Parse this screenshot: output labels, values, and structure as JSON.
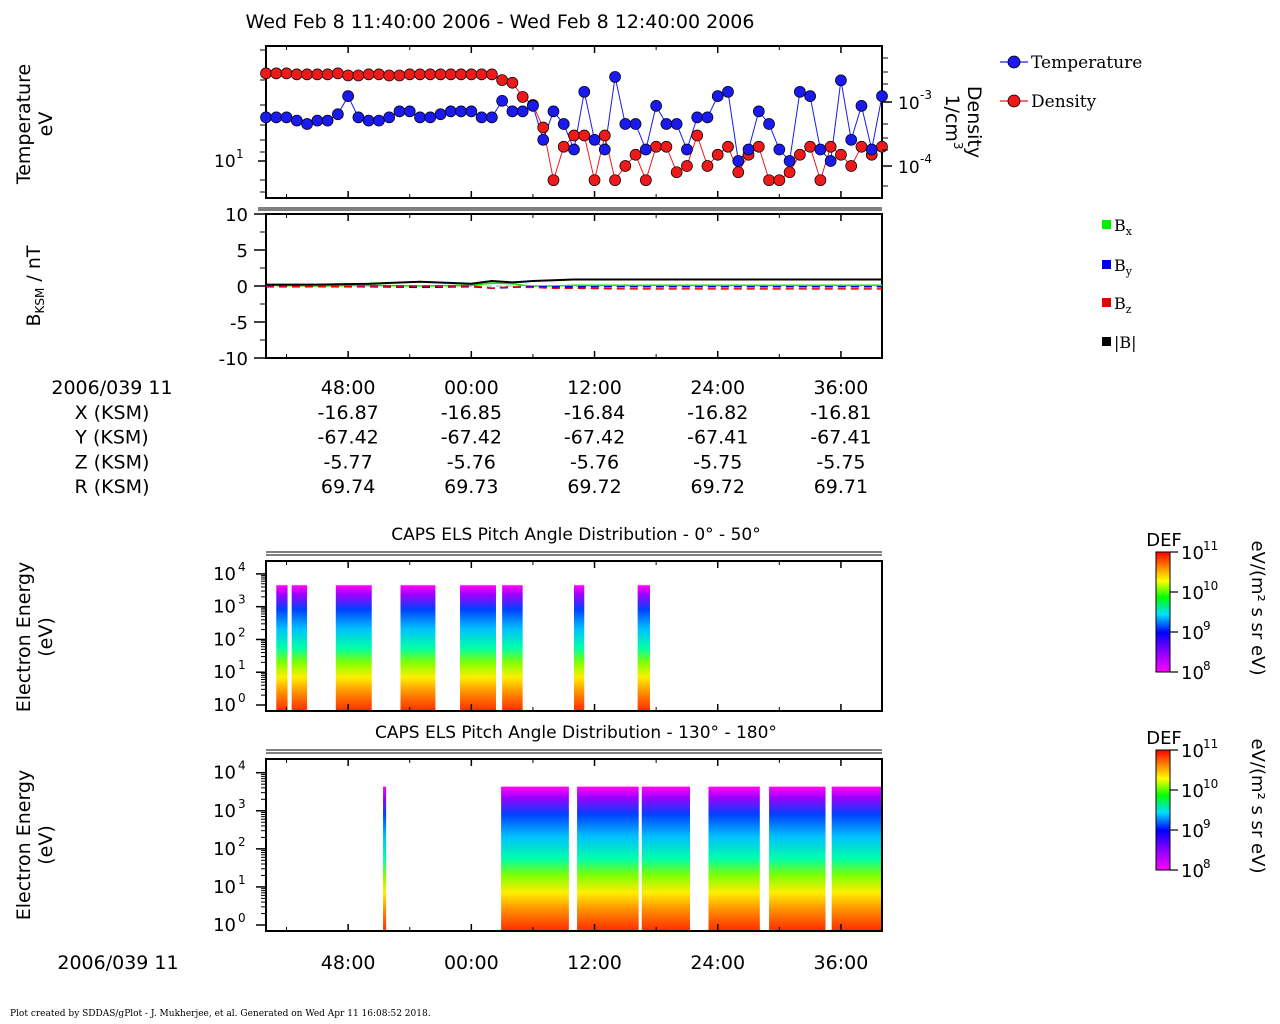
{
  "header": {
    "title": "Wed Feb 8 11:40:00 2006 - Wed Feb 8 12:40:00 2006",
    "footer": "Plot created by SDDAS/gPlot - J. Mukherjee, et al.  Generated on Wed Apr 11 16:08:52 2018."
  },
  "colors": {
    "temperature": "#1a1aee",
    "density": "#ee1a1a",
    "bx": "#00ee00",
    "by": "#0000ee",
    "bz": "#ee0000",
    "btot": "#000000"
  },
  "chart_data": [
    {
      "type": "line",
      "panel": "plasma_moments",
      "ylabel": "Temperature",
      "ylabel_unit": "eV",
      "y2label": "Density",
      "y2label_unit": "1/cm3",
      "y_scale": "log",
      "y_tick_labels": [
        "10^1"
      ],
      "y2_tick_labels": [
        "10^-3",
        "10^-4"
      ],
      "legend": [
        "Temperature",
        "Density"
      ],
      "legend_position": "right",
      "x_minutes": [
        0,
        1,
        2,
        3,
        4,
        5,
        6,
        7,
        8,
        9,
        10,
        11,
        12,
        13,
        14,
        15,
        16,
        17,
        18,
        19,
        20,
        21,
        22,
        23,
        24,
        25,
        26,
        27,
        28,
        29,
        30,
        31,
        32,
        33,
        34,
        35,
        36,
        37,
        38,
        39,
        40,
        41,
        42,
        43,
        44,
        45,
        46,
        47,
        48,
        49,
        50,
        51,
        52,
        53,
        54,
        55,
        56,
        57,
        58,
        59,
        60
      ],
      "series": [
        {
          "name": "Temperature",
          "values": [
            20,
            20,
            20,
            19,
            18,
            19,
            19,
            21,
            28,
            20,
            19,
            19,
            20,
            22,
            22,
            20,
            20,
            21,
            22,
            22,
            22,
            20,
            20,
            26,
            22,
            22,
            24,
            14,
            22,
            18,
            12,
            30,
            14,
            12,
            38,
            18,
            18,
            12,
            24,
            18,
            18,
            12,
            20,
            20,
            28,
            30,
            10,
            12,
            22,
            18,
            12,
            10,
            30,
            28,
            12,
            10,
            36,
            14,
            24,
            12,
            28
          ]
        },
        {
          "name": "Density",
          "values": [
            0.0028,
            0.0028,
            0.0028,
            0.0027,
            0.0027,
            0.0027,
            0.0027,
            0.0028,
            0.0026,
            0.0026,
            0.0027,
            0.0027,
            0.0026,
            0.0026,
            0.0027,
            0.0027,
            0.0027,
            0.0027,
            0.0027,
            0.0027,
            0.0027,
            0.0027,
            0.0027,
            0.0022,
            0.002,
            0.0012,
            0.0009,
            0.0004,
            6e-05,
            0.0002,
            0.0003,
            0.0003,
            6e-05,
            0.0003,
            6e-05,
            0.0001,
            0.00015,
            6e-05,
            0.0002,
            0.0002,
            8e-05,
            0.0001,
            0.0003,
            0.0001,
            0.00015,
            0.0002,
            8e-05,
            0.00015,
            0.0002,
            6e-05,
            6e-05,
            8e-05,
            0.00015,
            0.0002,
            6e-05,
            0.0002,
            0.00015,
            0.0001,
            0.0002,
            0.00015,
            0.0002
          ]
        }
      ]
    },
    {
      "type": "line",
      "panel": "magnetic_field",
      "ylabel": "B_KSM / nT",
      "ylim": [
        -10,
        10
      ],
      "y_ticks": [
        "10",
        "5",
        "0",
        "-5",
        "-10"
      ],
      "legend": [
        "Bx",
        "By",
        "Bz",
        "|B|"
      ],
      "legend_position": "right",
      "x_minutes": [
        0,
        5,
        10,
        15,
        20,
        22,
        24,
        25,
        26,
        28,
        30,
        35,
        40,
        45,
        50,
        55,
        60
      ],
      "series": [
        {
          "name": "Bx",
          "values": [
            0.1,
            0.0,
            0.1,
            0.0,
            0.1,
            0.4,
            0.3,
            0.1,
            0.0,
            0.0,
            0.1,
            0.1,
            0.1,
            0.1,
            0.1,
            0.1,
            0.1
          ]
        },
        {
          "name": "By",
          "values": [
            -0.1,
            -0.1,
            -0.1,
            -0.2,
            -0.1,
            -0.3,
            -0.2,
            -0.1,
            -0.1,
            -0.1,
            -0.1,
            -0.1,
            -0.1,
            -0.1,
            -0.1,
            -0.1,
            -0.1
          ]
        },
        {
          "name": "Bz",
          "values": [
            0.0,
            -0.1,
            0.0,
            0.0,
            0.0,
            -0.3,
            -0.1,
            -0.2,
            -0.2,
            -0.3,
            -0.3,
            -0.4,
            -0.4,
            -0.4,
            -0.4,
            -0.4,
            -0.4
          ]
        },
        {
          "name": "|B|",
          "values": [
            0.2,
            0.2,
            0.3,
            0.6,
            0.3,
            0.7,
            0.5,
            0.6,
            0.7,
            0.8,
            0.9,
            0.9,
            0.9,
            0.9,
            0.9,
            0.9,
            0.9
          ]
        }
      ]
    },
    {
      "type": "table",
      "panel": "ephemeris",
      "corner_label": "2006/039 11",
      "columns": [
        "48:00",
        "00:00",
        "12:00",
        "24:00",
        "36:00"
      ],
      "rows": [
        {
          "label": "X (KSM)",
          "values": [
            "-16.87",
            "-16.85",
            "-16.84",
            "-16.82",
            "-16.81"
          ]
        },
        {
          "label": "Y (KSM)",
          "values": [
            "-67.42",
            "-67.42",
            "-67.42",
            "-67.41",
            "-67.41"
          ]
        },
        {
          "label": "Z (KSM)",
          "values": [
            "-5.77",
            "-5.76",
            "-5.76",
            "-5.75",
            "-5.75"
          ]
        },
        {
          "label": "R (KSM)",
          "values": [
            "69.74",
            "69.73",
            "69.72",
            "69.72",
            "69.71"
          ]
        }
      ]
    },
    {
      "type": "heatmap",
      "panel": "pad_0_50",
      "title": "CAPS ELS Pitch Angle Distribution - 0° - 50°",
      "ylabel": "Electron Energy",
      "ylabel_unit": "(eV)",
      "y_scale": "log",
      "y_ticks": [
        "10^0",
        "10^1",
        "10^2",
        "10^3",
        "10^4"
      ],
      "colorbar": {
        "label": "DEF",
        "unit": "eV/(m2 s sr eV)",
        "ticks": [
          "10^11",
          "10^10",
          "10^9",
          "10^8"
        ]
      },
      "data_intervals_minutes": [
        [
          1.0,
          2.1
        ],
        [
          2.5,
          4.0
        ],
        [
          6.8,
          10.3
        ],
        [
          13.1,
          16.5
        ],
        [
          18.9,
          22.4
        ],
        [
          23.0,
          25.0
        ],
        [
          30.0,
          31.0
        ],
        [
          36.2,
          37.4
        ]
      ]
    },
    {
      "type": "heatmap",
      "panel": "pad_130_180",
      "title": "CAPS ELS Pitch Angle Distribution - 130° - 180°",
      "ylabel": "Electron Energy",
      "ylabel_unit": "(eV)",
      "y_scale": "log",
      "y_ticks": [
        "10^0",
        "10^1",
        "10^2",
        "10^3",
        "10^4"
      ],
      "colorbar": {
        "label": "DEF",
        "unit": "eV/(m2 s sr eV)",
        "ticks": [
          "10^11",
          "10^10",
          "10^9",
          "10^8"
        ]
      },
      "data_intervals_minutes": [
        [
          11.4,
          11.7
        ],
        [
          22.9,
          29.5
        ],
        [
          30.3,
          36.3
        ],
        [
          36.6,
          41.3
        ],
        [
          43.1,
          48.1
        ],
        [
          49.0,
          54.5
        ],
        [
          55.1,
          60.0
        ]
      ]
    }
  ],
  "time_axis": {
    "corner_label": "2006/039 11",
    "tick_labels": [
      "48:00",
      "00:00",
      "12:00",
      "24:00",
      "36:00"
    ]
  }
}
